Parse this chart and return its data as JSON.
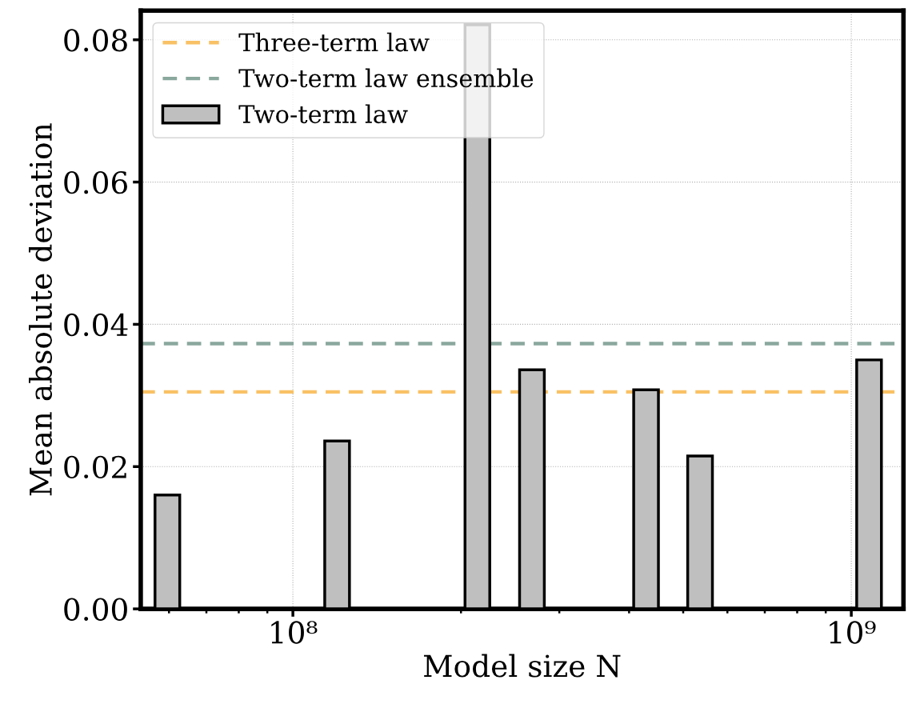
{
  "chart_data": {
    "type": "bar",
    "xlabel": "Model size N",
    "ylabel": "Mean absolute deviation",
    "x": [
      59600000.0,
      120000000.0,
      214000000.0,
      268000000.0,
      429000000.0,
      536000000.0,
      1076000000.0
    ],
    "series": [
      {
        "name": "Two-term law",
        "color": "#bfbfbf",
        "values": [
          0.016,
          0.0236,
          0.0821,
          0.0336,
          0.0308,
          0.0215,
          0.035
        ]
      }
    ],
    "ref_lines": [
      {
        "axis": "y",
        "value": 0.0305,
        "label": "Three-term law",
        "color": "#f9c165",
        "line_style": "dashed"
      },
      {
        "axis": "y",
        "value": 0.0373,
        "label": "Two-term law ensemble",
        "color": "#8aa89d",
        "line_style": "dashed"
      }
    ],
    "log": "x",
    "xlim": [
      53400000.0,
      1240000000.0
    ],
    "xticks": [
      {
        "value": 100000000,
        "label": "10⁸"
      },
      {
        "value": 1000000000,
        "label": "10⁹"
      }
    ],
    "ylim": [
      0,
      0.0841
    ],
    "yticks": [
      {
        "value": 0,
        "label": "0.00"
      },
      {
        "value": 0.02,
        "label": "0.02"
      },
      {
        "value": 0.04,
        "label": "0.04"
      },
      {
        "value": 0.06,
        "label": "0.06"
      },
      {
        "value": 0.08,
        "label": "0.08"
      }
    ],
    "grid": true,
    "legend": "top left"
  }
}
